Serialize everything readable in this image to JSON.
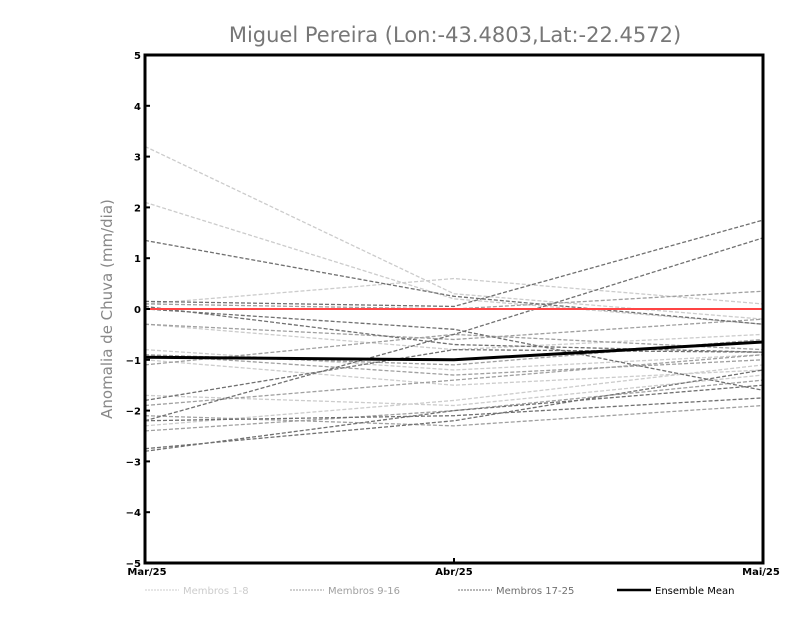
{
  "chart_data": {
    "type": "line",
    "title": "Miguel Pereira (Lon:-43.4803,Lat:-22.4572)",
    "xlabel": "",
    "ylabel": "Anomalia de Chuva (mm/dia)",
    "categories": [
      "Mar/25",
      "Abr/25",
      "Mai/25"
    ],
    "ylim": [
      -5,
      5
    ],
    "yticks": [
      "5",
      "4",
      "3",
      "2",
      "1",
      "0",
      "-1",
      "-2",
      "-3",
      "-4",
      "-5"
    ],
    "grid": false,
    "legend_position": "bottom",
    "zero_line_color": "#ff4444",
    "groups": [
      {
        "name": "Membros 1-8",
        "color": "#cccccc",
        "members": [
          [
            3.2,
            0.3,
            -0.2
          ],
          [
            2.1,
            0.2,
            -0.3
          ],
          [
            0.1,
            0.6,
            0.1
          ],
          [
            -0.3,
            -0.8,
            -0.5
          ],
          [
            -0.8,
            -1.2,
            -0.9
          ],
          [
            -1.7,
            -1.9,
            -1.3
          ],
          [
            -2.3,
            -1.8,
            -1.1
          ],
          [
            -1.0,
            -1.5,
            -1.2
          ]
        ]
      },
      {
        "name": "Membros 9-16",
        "color": "#a0a0a0",
        "members": [
          [
            -0.3,
            -0.6,
            -0.2
          ],
          [
            -0.9,
            -1.1,
            -0.6
          ],
          [
            -1.9,
            -1.4,
            -0.9
          ],
          [
            -2.4,
            -2.0,
            -1.4
          ],
          [
            0.1,
            0.0,
            0.35
          ],
          [
            -1.1,
            -0.5,
            -0.8
          ],
          [
            -2.1,
            -2.3,
            -1.9
          ],
          [
            -0.9,
            -1.3,
            -1.0
          ]
        ]
      },
      {
        "name": "Membros 17-25",
        "color": "#707070",
        "members": [
          [
            1.35,
            0.25,
            -0.3
          ],
          [
            0.15,
            0.05,
            1.75
          ],
          [
            0.05,
            -0.7,
            -0.85
          ],
          [
            -2.2,
            -0.5,
            1.4
          ],
          [
            -1.8,
            -0.8,
            -0.85
          ],
          [
            -2.75,
            -2.2,
            -1.2
          ],
          [
            -2.8,
            -2.0,
            -1.5
          ],
          [
            -2.2,
            -2.1,
            -1.75
          ],
          [
            0.0,
            -0.4,
            -1.6
          ]
        ]
      }
    ],
    "ensemble_mean": {
      "name": "Ensemble Mean",
      "color": "#000000",
      "values": [
        -0.95,
        -1.0,
        -0.65
      ]
    }
  }
}
